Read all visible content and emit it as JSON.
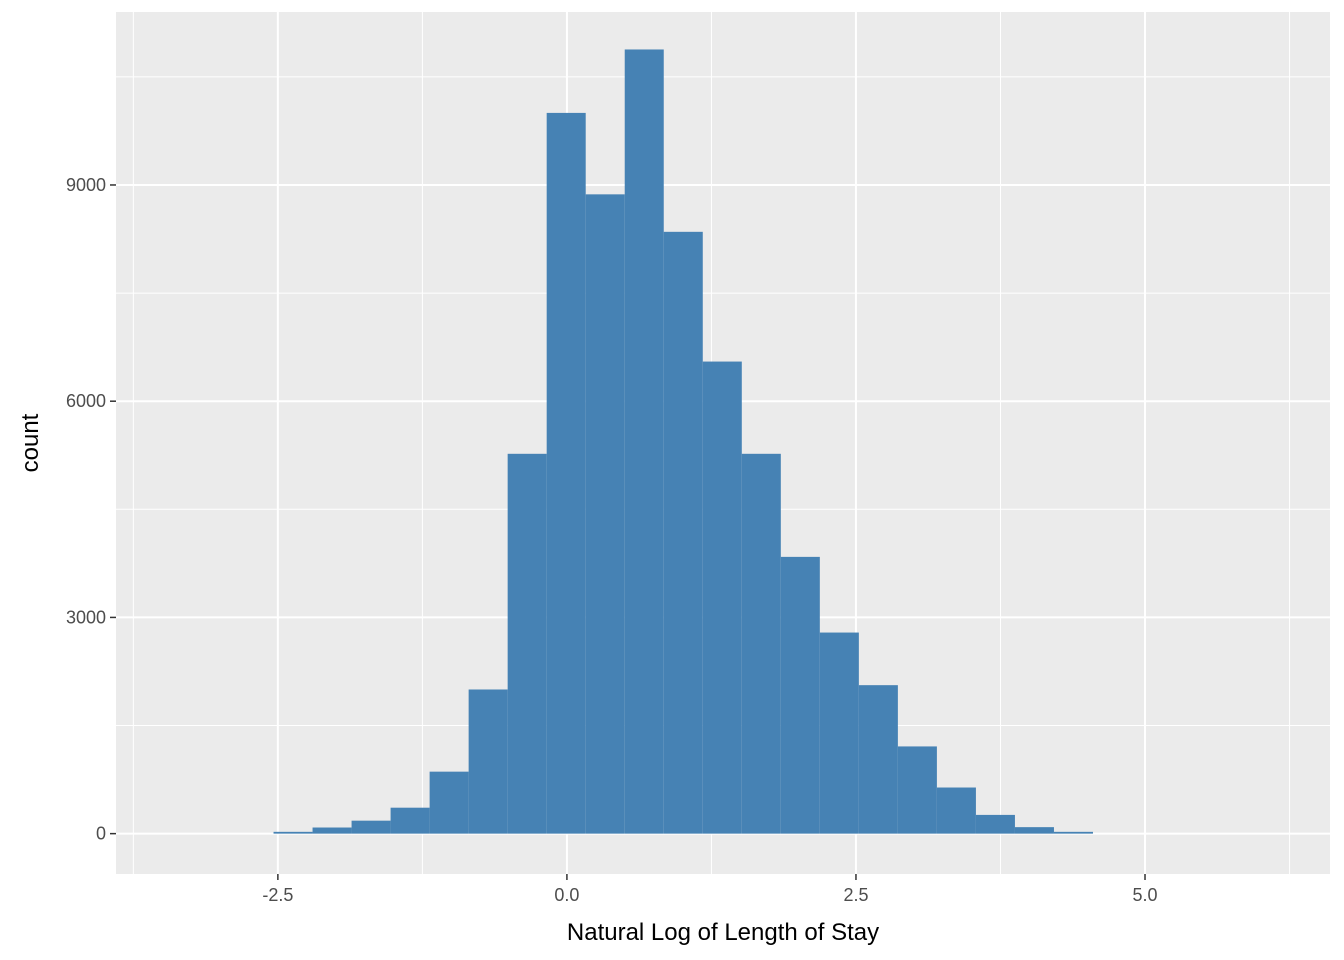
{
  "chart_data": {
    "type": "bar",
    "title": "",
    "xlabel": "Natural Log of Length of Stay",
    "ylabel": "count",
    "xlim": [
      -3.9,
      6.6
    ],
    "ylim": [
      -560,
      11400
    ],
    "x_ticks": [
      -2.5,
      0.0,
      2.5,
      5.0
    ],
    "x_tick_labels": [
      "-2.5",
      "0.0",
      "2.5",
      "5.0"
    ],
    "y_ticks": [
      0,
      3000,
      6000,
      9000
    ],
    "y_tick_labels": [
      "0",
      "3000",
      "6000",
      "9000"
    ],
    "grid": true,
    "legend": "none",
    "bin_width": 0.3375,
    "bins": [
      {
        "x0": -2.5375,
        "x1": -2.2,
        "count": 25
      },
      {
        "x0": -2.2,
        "x1": -1.8625,
        "count": 85
      },
      {
        "x0": -1.8625,
        "x1": -1.525,
        "count": 180
      },
      {
        "x0": -1.525,
        "x1": -1.1875,
        "count": 360
      },
      {
        "x0": -1.1875,
        "x1": -0.85,
        "count": 860
      },
      {
        "x0": -0.85,
        "x1": -0.5125,
        "count": 2000
      },
      {
        "x0": -0.5125,
        "x1": -0.175,
        "count": 5270
      },
      {
        "x0": -0.175,
        "x1": 0.1625,
        "count": 10000
      },
      {
        "x0": 0.1625,
        "x1": 0.5,
        "count": 8870
      },
      {
        "x0": 0.5,
        "x1": 0.8375,
        "count": 10880
      },
      {
        "x0": 0.8375,
        "x1": 1.175,
        "count": 8350
      },
      {
        "x0": 1.175,
        "x1": 1.5125,
        "count": 6550
      },
      {
        "x0": 1.5125,
        "x1": 1.85,
        "count": 5270
      },
      {
        "x0": 1.85,
        "x1": 2.1875,
        "count": 3840
      },
      {
        "x0": 2.1875,
        "x1": 2.525,
        "count": 2790
      },
      {
        "x0": 2.525,
        "x1": 2.8625,
        "count": 2060
      },
      {
        "x0": 2.8625,
        "x1": 3.2,
        "count": 1210
      },
      {
        "x0": 3.2,
        "x1": 3.5375,
        "count": 640
      },
      {
        "x0": 3.5375,
        "x1": 3.875,
        "count": 260
      },
      {
        "x0": 3.875,
        "x1": 4.2125,
        "count": 90
      },
      {
        "x0": 4.2125,
        "x1": 4.55,
        "count": 25
      }
    ],
    "colors": {
      "bar": "#4682b4",
      "panel": "#ebebeb",
      "grid": "#ffffff"
    }
  }
}
